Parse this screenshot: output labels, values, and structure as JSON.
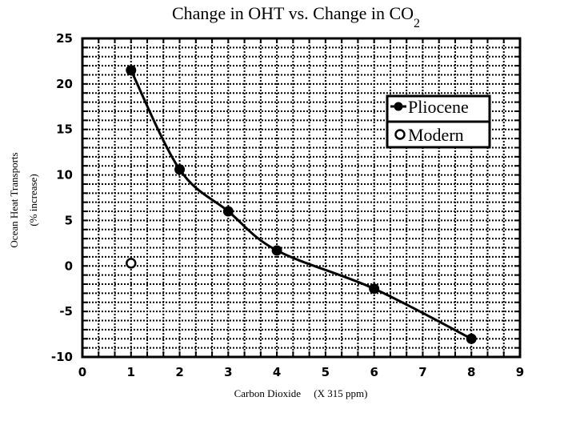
{
  "chart_data": {
    "type": "scatter",
    "title": "Change in OHT vs. Change in CO",
    "title_subscript": "2",
    "xlabel": "Carbon Dioxide     (X 315 ppm)",
    "ylabel_line1": "Ocean Heat Transports",
    "ylabel_line2": "(% increase)",
    "xlim": [
      0,
      9
    ],
    "ylim": [
      -10,
      25
    ],
    "xticks": [
      0,
      1,
      2,
      3,
      4,
      5,
      6,
      7,
      8,
      9
    ],
    "yticks": [
      -10,
      -5,
      0,
      5,
      10,
      15,
      20,
      25
    ],
    "x_minor_step": 0.3333,
    "y_minor_step": 1,
    "grid": true,
    "legend_position": "upper-right",
    "series": [
      {
        "name": "Pliocene",
        "marker": "filled-circle",
        "line": "smooth",
        "color": "#000000",
        "x": [
          1,
          2,
          3,
          4,
          6,
          8
        ],
        "y": [
          21.5,
          10.6,
          6.0,
          1.7,
          -2.5,
          -8.0
        ]
      },
      {
        "name": "Modern",
        "marker": "open-circle",
        "line": "none",
        "color": "#000000",
        "x": [
          1
        ],
        "y": [
          0.3
        ]
      }
    ]
  }
}
